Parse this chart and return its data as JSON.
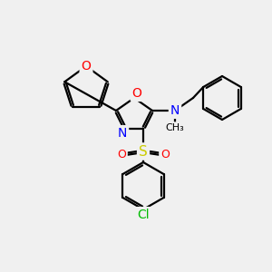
{
  "background_color": "#f0f0f0",
  "bond_color": "#000000",
  "atom_colors": {
    "O": "#ff0000",
    "N": "#0000ff",
    "S": "#cccc00",
    "Cl": "#00bb00",
    "C": "#000000"
  },
  "font_size": 9,
  "figsize": [
    3.0,
    3.0
  ],
  "dpi": 100
}
